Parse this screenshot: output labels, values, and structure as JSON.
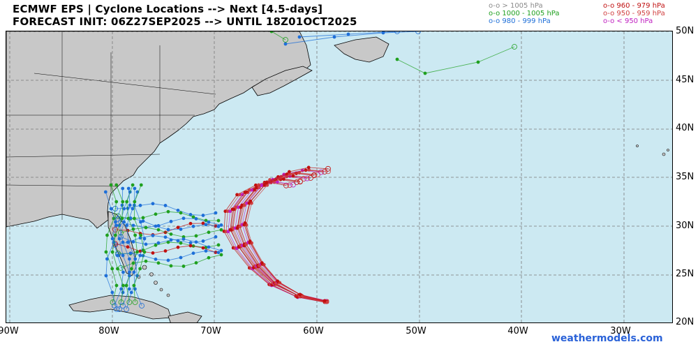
{
  "header": {
    "title_line1": "ECMWF EPS | Cyclone Locations --> Next [4.5-days]",
    "title_line2": "FORECAST INIT: 06Z27SEP2025 --> UNTIL 18Z01OCT2025"
  },
  "legend": {
    "items": [
      {
        "label": "o-o > 1005 hPa",
        "color": "#8a8a8a"
      },
      {
        "label": "o-o 1000 - 1005 hPa",
        "color": "#1fa01f"
      },
      {
        "label": "o-o 980 - 999 hPa",
        "color": "#1e6fd8"
      },
      {
        "label": "o-o 960 - 979 hPa",
        "color": "#c01010"
      },
      {
        "label": "o-o 950 - 959 hPa",
        "color": "#d04040"
      },
      {
        "label": "o-o < 950 hPa",
        "color": "#c020c0"
      }
    ]
  },
  "map": {
    "ocean_color": "#cce9f2",
    "land_color": "#c8c8c8",
    "lat_labels": [
      "50N",
      "45N",
      "40N",
      "35N",
      "30N",
      "25N",
      "20N"
    ],
    "lon_labels": [
      "90W",
      "80W",
      "70W",
      "60W",
      "50W",
      "40W",
      "30W"
    ]
  },
  "watermark": "weathermodels.com"
}
